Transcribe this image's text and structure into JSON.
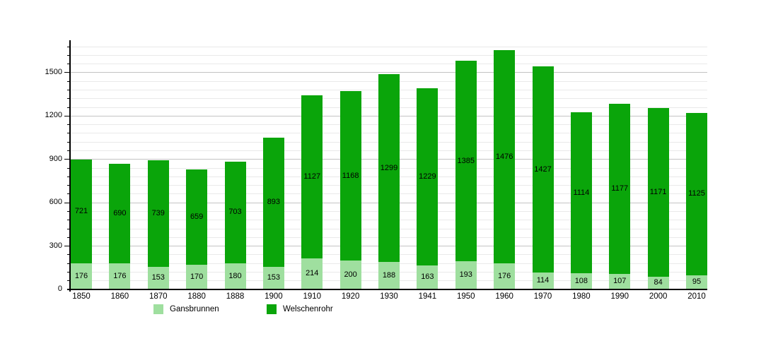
{
  "chart_data": {
    "type": "bar",
    "stacked": true,
    "title": "",
    "categories": [
      "1850",
      "1860",
      "1870",
      "1880",
      "1888",
      "1900",
      "1910",
      "1920",
      "1930",
      "1941",
      "1950",
      "1960",
      "1970",
      "1980",
      "1990",
      "2000",
      "2010"
    ],
    "series": [
      {
        "name": "Gansbrunnen",
        "color": "#9fdf9f",
        "values": [
          176,
          176,
          153,
          170,
          180,
          153,
          214,
          200,
          188,
          163,
          193,
          176,
          114,
          108,
          107,
          84,
          95
        ]
      },
      {
        "name": "Welschenrohr",
        "color": "#0aa50a",
        "values": [
          721,
          690,
          739,
          659,
          703,
          893,
          1127,
          1168,
          1299,
          1229,
          1385,
          1476,
          1427,
          1114,
          1177,
          1171,
          1125
        ]
      }
    ],
    "y_axis": {
      "tick_labels": [
        "0",
        "300",
        "600",
        "900",
        "1200",
        "1500"
      ],
      "tick_values": [
        0,
        300,
        600,
        900,
        1200,
        1500
      ],
      "minor_step": 60,
      "minor_max": 1680,
      "range": [
        0,
        1725
      ]
    },
    "x_axis": {
      "label": "",
      "tick_labels": [
        "1850",
        "1860",
        "1870",
        "1880",
        "1888",
        "1900",
        "1910",
        "1920",
        "1930",
        "1941",
        "1950",
        "1960",
        "1970",
        "1980",
        "1990",
        "2000",
        "2010"
      ]
    },
    "grid": true,
    "bar_value_labels": true,
    "legend_position": "bottom"
  },
  "legend": {
    "items": [
      {
        "label": "Gansbrunnen",
        "color": "#9fdf9f"
      },
      {
        "label": "Welschenrohr",
        "color": "#0aa50a"
      }
    ]
  },
  "colors": {
    "background": "#ffffff",
    "axis": "#000000",
    "gridline_minor": "#e9e9e9",
    "gridline_major": "#c3c3c3",
    "text": "#000000"
  }
}
